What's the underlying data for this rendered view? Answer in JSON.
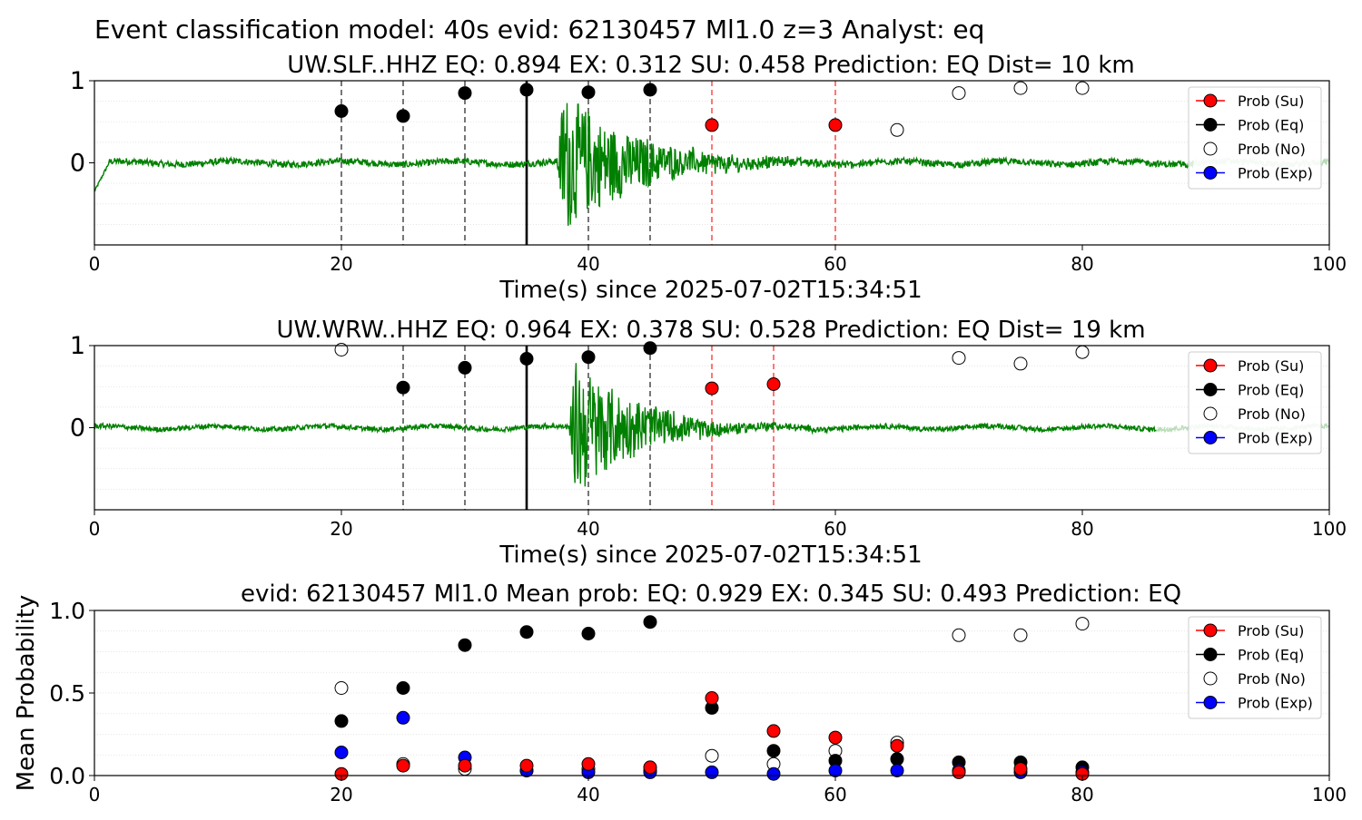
{
  "figure": {
    "suptitle": "Event classification model: 40s evid: 62130457 Ml1.0 z=3 Analyst: eq"
  },
  "colors": {
    "waveform": "#008000",
    "waveform_faded": "#b8dcb8",
    "su": "#ff0000",
    "eq": "#000000",
    "no": "#ffffff",
    "exp": "#0000ff",
    "vline_eq": "#555555",
    "vline_su": "#ff5555"
  },
  "chart_data": [
    {
      "type": "line",
      "title": "UW.SLF..HHZ   EQ: 0.894  EX: 0.312  SU: 0.458   Prediction: EQ    Dist= 10 km",
      "xlabel": "Time(s) since 2025-07-02T15:34:51",
      "ylabel": "",
      "xlim": [
        0,
        100
      ],
      "ylim": [
        -1,
        1
      ],
      "xticks": [
        "0",
        "20",
        "40",
        "60",
        "80",
        "100"
      ],
      "yticks": [
        "1",
        "0"
      ],
      "grid": "horizontal dotted",
      "legend": {
        "position": "top-right",
        "entries": [
          "Prob (Su)",
          "Prob (Eq)",
          "Prob (No)",
          "Prob (Exp)"
        ]
      },
      "waveform": {
        "noise_amp": 0.04,
        "burst_start": 37.5,
        "burst_peak": 0.95,
        "burst_decay": 6,
        "fade_start": 89
      },
      "pick_line_x": 35,
      "vlines_eq": [
        20,
        25,
        30,
        40,
        45
      ],
      "vlines_su": [
        50,
        60
      ],
      "series": [
        {
          "name": "Prob (Eq)",
          "points": [
            [
              20,
              0.63
            ],
            [
              25,
              0.57
            ],
            [
              30,
              0.85
            ],
            [
              35,
              0.89
            ],
            [
              40,
              0.86
            ],
            [
              45,
              0.89
            ]
          ]
        },
        {
          "name": "Prob (Su)",
          "points": [
            [
              50,
              0.46
            ],
            [
              60,
              0.46
            ]
          ]
        },
        {
          "name": "Prob (No)",
          "points": [
            [
              65,
              0.4
            ],
            [
              70,
              0.85
            ],
            [
              75,
              0.91
            ],
            [
              80,
              0.91
            ]
          ]
        },
        {
          "name": "Prob (Exp)",
          "points": []
        }
      ]
    },
    {
      "type": "line",
      "title": "UW.WRW..HHZ   EQ: 0.964  EX: 0.378  SU: 0.528   Prediction: EQ    Dist= 19 km",
      "xlabel": "Time(s) since 2025-07-02T15:34:51",
      "ylabel": "",
      "xlim": [
        0,
        100
      ],
      "ylim": [
        -1,
        1
      ],
      "xticks": [
        "0",
        "20",
        "40",
        "60",
        "80",
        "100"
      ],
      "yticks": [
        "1",
        "0"
      ],
      "grid": "horizontal dotted",
      "legend": {
        "position": "top-right",
        "entries": [
          "Prob (Su)",
          "Prob (Eq)",
          "Prob (No)",
          "Prob (Exp)"
        ]
      },
      "waveform": {
        "noise_amp": 0.03,
        "burst_start": 38.5,
        "burst_peak": 0.95,
        "burst_decay": 5,
        "fade_start": 86
      },
      "pick_line_x": 35,
      "vlines_eq": [
        25,
        30,
        40,
        45
      ],
      "vlines_su": [
        50,
        55
      ],
      "series": [
        {
          "name": "Prob (Eq)",
          "points": [
            [
              25,
              0.49
            ],
            [
              30,
              0.73
            ],
            [
              35,
              0.84
            ],
            [
              40,
              0.86
            ],
            [
              45,
              0.97
            ]
          ]
        },
        {
          "name": "Prob (Su)",
          "points": [
            [
              50,
              0.48
            ],
            [
              55,
              0.53
            ]
          ]
        },
        {
          "name": "Prob (No)",
          "points": [
            [
              20,
              0.95
            ],
            [
              70,
              0.85
            ],
            [
              75,
              0.78
            ],
            [
              80,
              0.92
            ]
          ]
        },
        {
          "name": "Prob (Exp)",
          "points": []
        }
      ]
    },
    {
      "type": "scatter",
      "title": "evid: 62130457  Ml1.0   Mean prob:   EQ: 0.929  EX: 0.345  SU: 0.493   Prediction: EQ",
      "xlabel": "",
      "ylabel": "Mean Probability",
      "xlim": [
        0,
        100
      ],
      "ylim": [
        0,
        1
      ],
      "xticks": [
        "0",
        "20",
        "40",
        "60",
        "80",
        "100"
      ],
      "yticks": [
        "1.0",
        "0.5",
        "0.0"
      ],
      "grid": "horizontal dotted",
      "legend": {
        "position": "top-right",
        "entries": [
          "Prob (Su)",
          "Prob (Eq)",
          "Prob (No)",
          "Prob (Exp)"
        ]
      },
      "series": [
        {
          "name": "Prob (No)",
          "points": [
            [
              20,
              0.53
            ],
            [
              25,
              0.07
            ],
            [
              30,
              0.04
            ],
            [
              35,
              0.03
            ],
            [
              40,
              0.04
            ],
            [
              45,
              0.03
            ],
            [
              50,
              0.12
            ],
            [
              55,
              0.07
            ],
            [
              60,
              0.15
            ],
            [
              65,
              0.2
            ],
            [
              70,
              0.85
            ],
            [
              75,
              0.85
            ],
            [
              80,
              0.92
            ]
          ]
        },
        {
          "name": "Prob (Eq)",
          "points": [
            [
              20,
              0.33
            ],
            [
              25,
              0.53
            ],
            [
              30,
              0.79
            ],
            [
              35,
              0.87
            ],
            [
              40,
              0.86
            ],
            [
              45,
              0.93
            ],
            [
              50,
              0.41
            ],
            [
              55,
              0.15
            ],
            [
              60,
              0.09
            ],
            [
              65,
              0.1
            ],
            [
              70,
              0.08
            ],
            [
              75,
              0.08
            ],
            [
              80,
              0.05
            ]
          ]
        },
        {
          "name": "Prob (Exp)",
          "points": [
            [
              20,
              0.14
            ],
            [
              25,
              0.35
            ],
            [
              30,
              0.11
            ],
            [
              35,
              0.03
            ],
            [
              40,
              0.02
            ],
            [
              45,
              0.02
            ],
            [
              50,
              0.02
            ],
            [
              55,
              0.01
            ],
            [
              60,
              0.03
            ],
            [
              65,
              0.03
            ],
            [
              70,
              0.03
            ],
            [
              75,
              0.02
            ],
            [
              80,
              0.02
            ]
          ]
        },
        {
          "name": "Prob (Su)",
          "points": [
            [
              20,
              0.01
            ],
            [
              25,
              0.06
            ],
            [
              30,
              0.06
            ],
            [
              35,
              0.06
            ],
            [
              40,
              0.07
            ],
            [
              45,
              0.05
            ],
            [
              50,
              0.47
            ],
            [
              55,
              0.27
            ],
            [
              60,
              0.23
            ],
            [
              65,
              0.18
            ],
            [
              70,
              0.02
            ],
            [
              75,
              0.04
            ],
            [
              80,
              0.01
            ]
          ]
        }
      ]
    }
  ]
}
